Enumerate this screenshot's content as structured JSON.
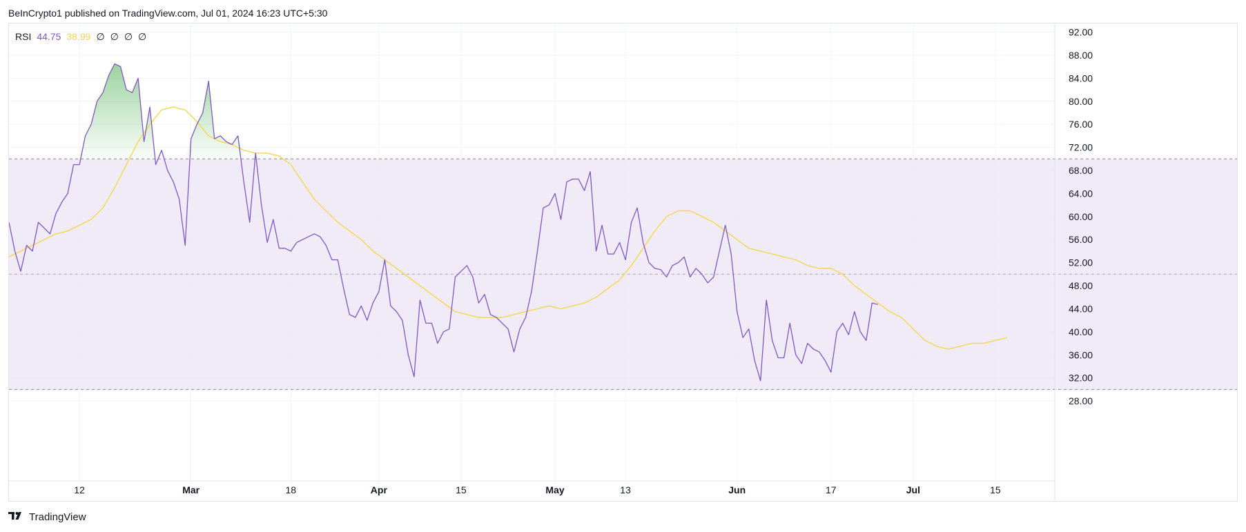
{
  "header": {
    "text": "BeInCrypto1 published on TradingView.com, Jul 01, 2024 16:23 UTC+5:30"
  },
  "legend": {
    "name": "RSI",
    "rsi_value": "44.75",
    "ma_value": "38.99",
    "na_values": [
      "∅",
      "∅",
      "∅",
      "∅"
    ]
  },
  "footer": {
    "brand": "TradingView",
    "logo_icon": "tradingview-logo-icon"
  },
  "colors": {
    "rsi_line": "#7e57c2",
    "ma_line": "#f5d74a",
    "band_fill": "#ede7f6",
    "overbought_fill": "#4caf50",
    "grid": "#f0f3fa",
    "text": "#131722"
  },
  "chart_data": {
    "type": "line",
    "y_axis": {
      "ticks": [
        "92.00",
        "88.00",
        "84.00",
        "80.00",
        "76.00",
        "72.00",
        "68.00",
        "64.00",
        "60.00",
        "56.00",
        "52.00",
        "48.00",
        "44.00",
        "40.00",
        "36.00",
        "32.00",
        "28.00"
      ],
      "range": [
        25.5,
        93.5
      ]
    },
    "x_axis": {
      "labels": [
        {
          "text": "12",
          "t": 12,
          "bold": false
        },
        {
          "text": "Mar",
          "t": 31,
          "bold": true
        },
        {
          "text": "18",
          "t": 48,
          "bold": false
        },
        {
          "text": "Apr",
          "t": 63,
          "bold": true
        },
        {
          "text": "15",
          "t": 77,
          "bold": false
        },
        {
          "text": "May",
          "t": 93,
          "bold": true
        },
        {
          "text": "13",
          "t": 105,
          "bold": false
        },
        {
          "text": "Jun",
          "t": 124,
          "bold": true
        },
        {
          "text": "17",
          "t": 140,
          "bold": false
        },
        {
          "text": "Jul",
          "t": 154,
          "bold": true
        },
        {
          "text": "15",
          "t": 168,
          "bold": false
        }
      ],
      "range": [
        0,
        178
      ]
    },
    "levels": {
      "upper": 70,
      "middle": 50,
      "lower": 30
    },
    "grid": true,
    "series": [
      {
        "name": "RSI",
        "points": [
          [
            0,
            59
          ],
          [
            1,
            54
          ],
          [
            2,
            50.5
          ],
          [
            3,
            55
          ],
          [
            4,
            54
          ],
          [
            5,
            59
          ],
          [
            6,
            58
          ],
          [
            7,
            57
          ],
          [
            8,
            60.5
          ],
          [
            9,
            62.5
          ],
          [
            10,
            64
          ],
          [
            11,
            69
          ],
          [
            12,
            69
          ],
          [
            13,
            74
          ],
          [
            14,
            76
          ],
          [
            15,
            80
          ],
          [
            16,
            81.5
          ],
          [
            17,
            84.5
          ],
          [
            18,
            86.5
          ],
          [
            19,
            86
          ],
          [
            20,
            82
          ],
          [
            21,
            81.5
          ],
          [
            22,
            84
          ],
          [
            23,
            73
          ],
          [
            24,
            79
          ],
          [
            25,
            69
          ],
          [
            26,
            71.5
          ],
          [
            27,
            68
          ],
          [
            28,
            66
          ],
          [
            29,
            63
          ],
          [
            30,
            55
          ],
          [
            31,
            73.5
          ],
          [
            32,
            76
          ],
          [
            33,
            78
          ],
          [
            34,
            83.5
          ],
          [
            35,
            73.5
          ],
          [
            36,
            74
          ],
          [
            37,
            73
          ],
          [
            38,
            72.5
          ],
          [
            39,
            74
          ],
          [
            40,
            66
          ],
          [
            41,
            59
          ],
          [
            42,
            71
          ],
          [
            43,
            62
          ],
          [
            44,
            55.5
          ],
          [
            45,
            59.5
          ],
          [
            46,
            54.5
          ],
          [
            47,
            54.5
          ],
          [
            48,
            54
          ],
          [
            49,
            55.5
          ],
          [
            50,
            56
          ],
          [
            51,
            56.5
          ],
          [
            52,
            57
          ],
          [
            53,
            56.5
          ],
          [
            54,
            55
          ],
          [
            55,
            52.5
          ],
          [
            56,
            52.5
          ],
          [
            57,
            47.5
          ],
          [
            58,
            43
          ],
          [
            59,
            42.5
          ],
          [
            60,
            44.5
          ],
          [
            61,
            42
          ],
          [
            62,
            45
          ],
          [
            63,
            47
          ],
          [
            64,
            52.5
          ],
          [
            65,
            44.5
          ],
          [
            66,
            43.5
          ],
          [
            67,
            42
          ],
          [
            68,
            36
          ],
          [
            69,
            32.2
          ],
          [
            70,
            45.5
          ],
          [
            71,
            41.5
          ],
          [
            72,
            41.5
          ],
          [
            73,
            38
          ],
          [
            74,
            40
          ],
          [
            75,
            40.5
          ],
          [
            76,
            49.5
          ],
          [
            77,
            50.5
          ],
          [
            78,
            51.5
          ],
          [
            79,
            49.5
          ],
          [
            80,
            45
          ],
          [
            81,
            46.5
          ],
          [
            82,
            43
          ],
          [
            83,
            42.5
          ],
          [
            84,
            41.5
          ],
          [
            85,
            40.5
          ],
          [
            86,
            36.5
          ],
          [
            87,
            40.5
          ],
          [
            88,
            42.5
          ],
          [
            89,
            47
          ],
          [
            90,
            54
          ],
          [
            91,
            61.5
          ],
          [
            92,
            62
          ],
          [
            93,
            64
          ],
          [
            94,
            59.5
          ],
          [
            95,
            66
          ],
          [
            96,
            66.5
          ],
          [
            97,
            66.5
          ],
          [
            98,
            64.5
          ],
          [
            99,
            67.8
          ],
          [
            100,
            54
          ],
          [
            101,
            58.5
          ],
          [
            102,
            53.5
          ],
          [
            103,
            53.5
          ],
          [
            104,
            55.5
          ],
          [
            105,
            52.5
          ],
          [
            106,
            59
          ],
          [
            107,
            61.5
          ],
          [
            108,
            55.5
          ],
          [
            109,
            52
          ],
          [
            110,
            51
          ],
          [
            111,
            50.8
          ],
          [
            112,
            49.5
          ],
          [
            113,
            51.5
          ],
          [
            114,
            52
          ],
          [
            115,
            53
          ],
          [
            116,
            49.5
          ],
          [
            117,
            51
          ],
          [
            118,
            50
          ],
          [
            119,
            48.5
          ],
          [
            120,
            49.5
          ],
          [
            121,
            54
          ],
          [
            122,
            58.5
          ],
          [
            123,
            53.5
          ],
          [
            124,
            43.5
          ],
          [
            125,
            39
          ],
          [
            126,
            40.5
          ],
          [
            127,
            35
          ],
          [
            128,
            31.5
          ],
          [
            129,
            45.5
          ],
          [
            130,
            38.5
          ],
          [
            131,
            35.5
          ],
          [
            132,
            35.5
          ],
          [
            133,
            41.5
          ],
          [
            134,
            36
          ],
          [
            135,
            34.5
          ],
          [
            136,
            38
          ],
          [
            137,
            37
          ],
          [
            138,
            36.5
          ],
          [
            139,
            35
          ],
          [
            140,
            33
          ],
          [
            141,
            40
          ],
          [
            142,
            41.5
          ],
          [
            143,
            39.5
          ],
          [
            144,
            43.5
          ],
          [
            145,
            40
          ],
          [
            146,
            38.5
          ],
          [
            147,
            45
          ],
          [
            148,
            44.75
          ]
        ]
      },
      {
        "name": "RSI-based MA",
        "points": [
          [
            0,
            53
          ],
          [
            2,
            54
          ],
          [
            4,
            55
          ],
          [
            6,
            56
          ],
          [
            8,
            57
          ],
          [
            10,
            57.5
          ],
          [
            12,
            58.5
          ],
          [
            14,
            59.5
          ],
          [
            16,
            61.5
          ],
          [
            18,
            65
          ],
          [
            20,
            69
          ],
          [
            22,
            73
          ],
          [
            24,
            76
          ],
          [
            26,
            78.5
          ],
          [
            28,
            79
          ],
          [
            30,
            78.5
          ],
          [
            32,
            76.5
          ],
          [
            34,
            74
          ],
          [
            36,
            73
          ],
          [
            38,
            72.5
          ],
          [
            40,
            71.5
          ],
          [
            42,
            71
          ],
          [
            44,
            71
          ],
          [
            46,
            70.5
          ],
          [
            48,
            69
          ],
          [
            50,
            66
          ],
          [
            52,
            63
          ],
          [
            54,
            61
          ],
          [
            56,
            59
          ],
          [
            58,
            57.5
          ],
          [
            60,
            56
          ],
          [
            62,
            54
          ],
          [
            64,
            52.5
          ],
          [
            66,
            51
          ],
          [
            68,
            49.5
          ],
          [
            70,
            48
          ],
          [
            72,
            46.5
          ],
          [
            74,
            45
          ],
          [
            76,
            43.5
          ],
          [
            78,
            43
          ],
          [
            80,
            42.5
          ],
          [
            82,
            42.5
          ],
          [
            84,
            42.5
          ],
          [
            86,
            43
          ],
          [
            88,
            43.5
          ],
          [
            90,
            44
          ],
          [
            92,
            44.5
          ],
          [
            94,
            44
          ],
          [
            96,
            44.5
          ],
          [
            98,
            45
          ],
          [
            100,
            46
          ],
          [
            102,
            47.5
          ],
          [
            104,
            49
          ],
          [
            106,
            51.5
          ],
          [
            108,
            54.5
          ],
          [
            110,
            57.5
          ],
          [
            112,
            60
          ],
          [
            114,
            61
          ],
          [
            116,
            61
          ],
          [
            118,
            60
          ],
          [
            120,
            59
          ],
          [
            122,
            57.5
          ],
          [
            124,
            56
          ],
          [
            126,
            54.5
          ],
          [
            128,
            54
          ],
          [
            130,
            53.5
          ],
          [
            132,
            53
          ],
          [
            134,
            52.5
          ],
          [
            136,
            51.5
          ],
          [
            138,
            51
          ],
          [
            140,
            51
          ],
          [
            142,
            50
          ],
          [
            144,
            48
          ],
          [
            146,
            46.5
          ],
          [
            148,
            45
          ],
          [
            150,
            43.5
          ],
          [
            152,
            42.5
          ],
          [
            154,
            40.5
          ],
          [
            156,
            38.5
          ],
          [
            158,
            37.5
          ],
          [
            160,
            37
          ],
          [
            162,
            37.5
          ],
          [
            164,
            38
          ],
          [
            166,
            38
          ],
          [
            168,
            38.5
          ],
          [
            170,
            38.99
          ]
        ]
      }
    ]
  }
}
